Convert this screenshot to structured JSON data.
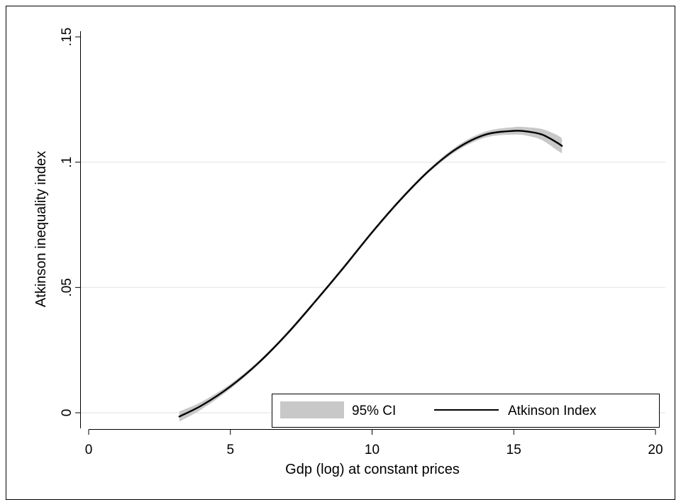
{
  "chart_data": {
    "type": "line",
    "title": "",
    "xlabel": "Gdp (log) at constant prices",
    "ylabel": "Atkinson inequality index",
    "xlim": [
      0,
      20
    ],
    "ylim": [
      0,
      0.15
    ],
    "x_ticks": [
      0,
      5,
      10,
      15,
      20
    ],
    "x_tick_labels": [
      "0",
      "5",
      "10",
      "15",
      "20"
    ],
    "y_ticks": [
      0,
      0.05,
      0.1,
      0.15
    ],
    "y_tick_labels": [
      "0",
      ".05",
      ".1",
      ".15"
    ],
    "grid": "horizontal",
    "legend_position": "bottom-right",
    "legend": [
      "95% CI",
      "Atkinson Index"
    ],
    "band_color": "#c8c8c8",
    "line_color": "#000000",
    "series": [
      {
        "name": "Atkinson Index",
        "x": [
          3.2,
          4.0,
          5.0,
          6.0,
          7.0,
          8.0,
          9.0,
          10.0,
          11.0,
          12.0,
          13.0,
          14.0,
          15.0,
          15.5,
          16.0,
          16.5,
          16.7
        ],
        "y": [
          -0.0015,
          0.003,
          0.0105,
          0.02,
          0.0315,
          0.0445,
          0.058,
          0.072,
          0.085,
          0.0965,
          0.1055,
          0.111,
          0.1125,
          0.1122,
          0.111,
          0.108,
          0.1065
        ],
        "lower": [
          -0.0035,
          0.0015,
          0.0095,
          0.0193,
          0.0308,
          0.0438,
          0.0573,
          0.0713,
          0.0843,
          0.0958,
          0.1045,
          0.1098,
          0.111,
          0.1105,
          0.1088,
          0.105,
          0.1035
        ],
        "upper": [
          0.0005,
          0.0045,
          0.0115,
          0.0207,
          0.0322,
          0.0452,
          0.0587,
          0.0727,
          0.0857,
          0.0972,
          0.1065,
          0.1122,
          0.114,
          0.1139,
          0.1132,
          0.111,
          0.1095
        ]
      }
    ]
  }
}
